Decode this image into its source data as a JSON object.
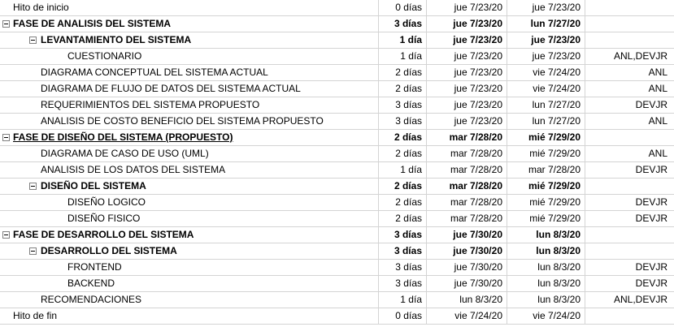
{
  "tasks": [
    {
      "name": "Hito de inicio",
      "duration": "0 días",
      "start": "jue 7/23/20",
      "end": "jue 7/23/20",
      "resources": "",
      "level": 0,
      "summary": false,
      "collapsible": false
    },
    {
      "name": "FASE DE ANALISIS DEL SISTEMA",
      "duration": "3 días",
      "start": "jue 7/23/20",
      "end": "lun 7/27/20",
      "resources": "",
      "level": 0,
      "summary": true,
      "collapsible": true
    },
    {
      "name": "LEVANTAMIENTO DEL SISTEMA",
      "duration": "1 día",
      "start": "jue 7/23/20",
      "end": "jue 7/23/20",
      "resources": "",
      "level": 1,
      "summary": true,
      "collapsible": true
    },
    {
      "name": "CUESTIONARIO",
      "duration": "1 día",
      "start": "jue 7/23/20",
      "end": "jue 7/23/20",
      "resources": "ANL,DEVJR",
      "level": 2,
      "summary": false,
      "collapsible": false
    },
    {
      "name": "DIAGRAMA CONCEPTUAL DEL SISTEMA ACTUAL",
      "duration": "2 días",
      "start": "jue 7/23/20",
      "end": "vie 7/24/20",
      "resources": "ANL",
      "level": 1,
      "summary": false,
      "collapsible": false
    },
    {
      "name": "DIAGRAMA DE FLUJO DE DATOS DEL SISTEMA ACTUAL",
      "duration": "2 días",
      "start": "jue 7/23/20",
      "end": "vie 7/24/20",
      "resources": "ANL",
      "level": 1,
      "summary": false,
      "collapsible": false
    },
    {
      "name": "REQUERIMIENTOS DEL SISTEMA PROPUESTO",
      "duration": "3 días",
      "start": "jue 7/23/20",
      "end": "lun 7/27/20",
      "resources": "DEVJR",
      "level": 1,
      "summary": false,
      "collapsible": false
    },
    {
      "name": "ANALISIS DE COSTO BENEFICIO DEL SISTEMA PROPUESTO",
      "duration": "3 días",
      "start": "jue 7/23/20",
      "end": "lun 7/27/20",
      "resources": "ANL",
      "level": 1,
      "summary": false,
      "collapsible": false
    },
    {
      "name": "FASE DE DISEÑO DEL SISTEMA (PROPUESTO)",
      "duration": "2 días",
      "start": "mar 7/28/20",
      "end": "mié 7/29/20",
      "resources": "",
      "level": 0,
      "summary": true,
      "collapsible": true,
      "underline": true
    },
    {
      "name": "DIAGRAMA DE CASO DE USO (UML)",
      "duration": "2 días",
      "start": "mar 7/28/20",
      "end": "mié 7/29/20",
      "resources": "ANL",
      "level": 1,
      "summary": false,
      "collapsible": false
    },
    {
      "name": "ANALISIS DE LOS DATOS DEL SISTEMA",
      "duration": "1 día",
      "start": "mar 7/28/20",
      "end": "mar 7/28/20",
      "resources": "DEVJR",
      "level": 1,
      "summary": false,
      "collapsible": false
    },
    {
      "name": "DISEÑO DEL SISTEMA",
      "duration": "2 días",
      "start": "mar 7/28/20",
      "end": "mié 7/29/20",
      "resources": "",
      "level": 1,
      "summary": true,
      "collapsible": true
    },
    {
      "name": "DISEÑO LOGICO",
      "duration": "2 días",
      "start": "mar 7/28/20",
      "end": "mié 7/29/20",
      "resources": "DEVJR",
      "level": 2,
      "summary": false,
      "collapsible": false
    },
    {
      "name": "DISEÑO FISICO",
      "duration": "2 días",
      "start": "mar 7/28/20",
      "end": "mié 7/29/20",
      "resources": "DEVJR",
      "level": 2,
      "summary": false,
      "collapsible": false
    },
    {
      "name": "FASE DE DESARROLLO DEL SISTEMA",
      "duration": "3 días",
      "start": "jue 7/30/20",
      "end": "lun 8/3/20",
      "resources": "",
      "level": 0,
      "summary": true,
      "collapsible": true
    },
    {
      "name": "DESARROLLO DEL SISTEMA",
      "duration": "3 días",
      "start": "jue 7/30/20",
      "end": "lun 8/3/20",
      "resources": "",
      "level": 1,
      "summary": true,
      "collapsible": true
    },
    {
      "name": "FRONTEND",
      "duration": "3 días",
      "start": "jue 7/30/20",
      "end": "lun 8/3/20",
      "resources": "DEVJR",
      "level": 2,
      "summary": false,
      "collapsible": false
    },
    {
      "name": "BACKEND",
      "duration": "3 días",
      "start": "jue 7/30/20",
      "end": "lun 8/3/20",
      "resources": "DEVJR",
      "level": 2,
      "summary": false,
      "collapsible": false
    },
    {
      "name": "RECOMENDACIONES",
      "duration": "1 día",
      "start": "lun 8/3/20",
      "end": "lun 8/3/20",
      "resources": "ANL,DEVJR",
      "level": 1,
      "summary": false,
      "collapsible": false
    },
    {
      "name": "Hito de fin",
      "duration": "0 días",
      "start": "vie 7/24/20",
      "end": "vie 7/24/20",
      "resources": "",
      "level": 0,
      "summary": false,
      "collapsible": false
    }
  ]
}
